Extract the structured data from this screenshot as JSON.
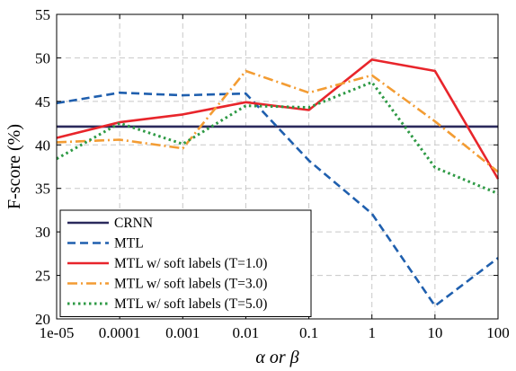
{
  "chart_data": {
    "type": "line",
    "xlabel": "α or β",
    "ylabel": "F-score (%)",
    "x": [
      "1e-05",
      "0.0001",
      "0.001",
      "0.01",
      "0.1",
      "1",
      "10",
      "100"
    ],
    "ylim": [
      20,
      55
    ],
    "yticks": [
      20,
      25,
      30,
      35,
      40,
      45,
      50,
      55
    ],
    "grid": true,
    "legend_position": "lower-left",
    "series": [
      {
        "name": "CRNN",
        "color": "#2b2a5c",
        "style": "solid",
        "values": [
          42.1,
          42.1,
          42.1,
          42.1,
          42.1,
          42.1,
          42.1,
          42.1
        ]
      },
      {
        "name": "MTL",
        "color": "#1f5fae",
        "style": "dashed",
        "values": [
          44.8,
          46.0,
          45.7,
          45.9,
          38.2,
          32.1,
          21.5,
          27.0
        ]
      },
      {
        "name": "MTL w/ soft labels (T=1.0)",
        "color": "#e8252b",
        "style": "solid",
        "values": [
          40.8,
          42.6,
          43.5,
          44.9,
          44.0,
          49.8,
          48.5,
          36.1
        ]
      },
      {
        "name": "MTL w/ soft labels (T=3.0)",
        "color": "#f39c33",
        "style": "dashdot",
        "values": [
          40.3,
          40.6,
          39.6,
          48.5,
          46.0,
          48.0,
          42.7,
          36.9
        ]
      },
      {
        "name": "MTL w/ soft labels (T=5.0)",
        "color": "#2e9a45",
        "style": "dotted",
        "values": [
          38.4,
          42.5,
          40.1,
          44.5,
          44.3,
          47.2,
          37.4,
          34.4
        ]
      }
    ]
  }
}
